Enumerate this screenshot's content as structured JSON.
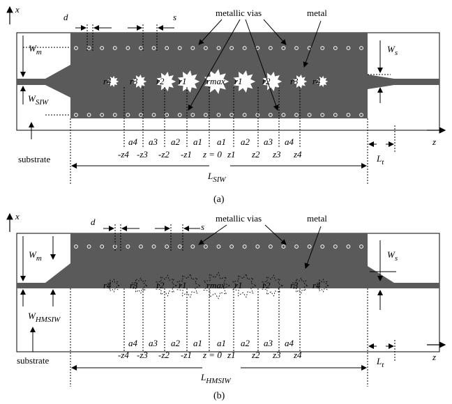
{
  "panels": [
    {
      "id": "a",
      "caption": "(a)",
      "axis_x": "x",
      "axis_z": "z",
      "labels": {
        "d": "d",
        "s": "s",
        "vias": "metallic vias",
        "metal": "metal",
        "wm": "W",
        "wm_sub": "m",
        "ws": "W",
        "ws_sub": "s",
        "wguide": "W",
        "wguide_sub": "SIW",
        "substrate": "substrate",
        "len": "L",
        "len_sub": "SIW",
        "lt": "L",
        "lt_sub": "t"
      },
      "radii": [
        "r4",
        "r3",
        "r2",
        "r1",
        "rmax",
        "r1",
        "r2",
        "r3",
        "r4"
      ],
      "a_labels": [
        "a4",
        "a3",
        "a2",
        "a1",
        "a1",
        "a2",
        "a3",
        "a4"
      ],
      "z_labels": [
        "-z4",
        "-z3",
        "-z2",
        "-z1",
        "z = 0",
        "z1",
        "z2",
        "z3",
        "z4"
      ]
    },
    {
      "id": "b",
      "caption": "(b)",
      "axis_x": "x",
      "axis_z": "z",
      "labels": {
        "d": "d",
        "s": "s",
        "vias": "metallic vias",
        "metal": "metal",
        "wm": "W",
        "wm_sub": "m",
        "ws": "W",
        "ws_sub": "s",
        "wguide": "W",
        "wguide_sub": "HMSIW",
        "substrate": "substrate",
        "len": "L",
        "len_sub": "HMSIW",
        "lt": "L",
        "lt_sub": "t"
      },
      "radii": [
        "r4",
        "r3",
        "r2",
        "r1",
        "rmax",
        "r1",
        "r2",
        "r3",
        "r4"
      ],
      "a_labels": [
        "a4",
        "a3",
        "a2",
        "a1",
        "a1",
        "a2",
        "a3",
        "a4"
      ],
      "z_labels": [
        "-z4",
        "-z3",
        "-z2",
        "-z1",
        "z = 0",
        "z1",
        "z2",
        "z3",
        "z4"
      ]
    }
  ],
  "colors": {
    "metal": "#5a5a5a",
    "substrate": "#ffffff",
    "stroke": "#000000",
    "via_fill": "#5a5a5a",
    "via_stroke": "#ffffff"
  }
}
